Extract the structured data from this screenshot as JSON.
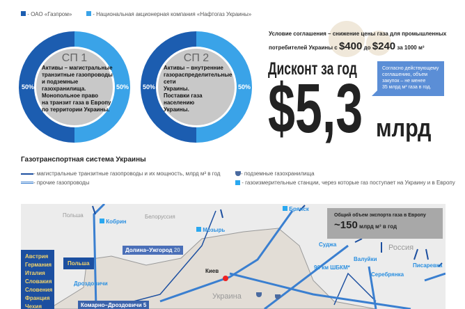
{
  "legend": {
    "gazprom": "- ОАО «Газпром»",
    "naftogaz": "- Национальная акционерная компания «Нафтогаз Украины»",
    "colors": {
      "gazprom": "#1c5db0",
      "naftogaz": "#3aa3e8"
    }
  },
  "joint_ventures": [
    {
      "title": "СП 1",
      "text": [
        "Активы – магистральные",
        "транзитные газопроводы",
        "и подземные газохранилища.",
        "Монопольное право",
        "на транзит газа в Европу",
        "по территории Украины."
      ],
      "left_share": "50%",
      "right_share": "50%"
    },
    {
      "title": "СП 2",
      "text": [
        "Активы – внутренние",
        "газораспределительные сети",
        "Украины.",
        "Поставки газа населению",
        "Украины."
      ],
      "left_share": "50%",
      "right_share": "50%"
    }
  ],
  "agreement": {
    "line1": "Условие соглашения – снижение цены газа для промышленных",
    "line2_prefix": "потребителей Украины с",
    "price_from": "$400",
    "mid": "до",
    "price_to": "$240",
    "suffix": "за 1000 м³"
  },
  "discount": {
    "heading": "Дисконт за год",
    "amount": "$5,3",
    "unit": "млрд"
  },
  "callout": [
    "Согласно действующему",
    "соглашению, объем",
    "закупок – не менее",
    "35 млрд м³ газа в год."
  ],
  "map": {
    "title": "Газотранспортная система Украины",
    "legend": {
      "main": "- магистральные транзитные газопроводы и их мощность, млрд м³ в год",
      "other": "- прочие газопроводы",
      "storage": "- подземные газохранилища",
      "stations": "- газоизмерительные станции, через которые газ поступает на Украину и в Европу"
    },
    "countries": [
      "Польша",
      "Белоруссия",
      "Россия",
      "Украина"
    ],
    "city": "Киев",
    "stations": [
      "Кобрин",
      "Мозырь",
      "Брянск",
      "Суджа",
      "Валуйки",
      "96 км ШБКМ*",
      "Серебрянка",
      "Писаревка",
      "Дроздовичи"
    ],
    "pipelines": [
      {
        "name": "Долина–Ужгород",
        "capacity": "20"
      },
      {
        "name": "Комарно–Дроздовичи",
        "capacity": "5"
      }
    ],
    "export_box": {
      "line1": "Общий объем экспорта газа в Европу",
      "amount": "~150",
      "unit": "млрд м³ в год"
    },
    "destinations": [
      "Австрия",
      "Германия",
      "Италия",
      "Словакия",
      "Словения",
      "Франция",
      "Чехия"
    ],
    "poland_box": "Польша"
  }
}
